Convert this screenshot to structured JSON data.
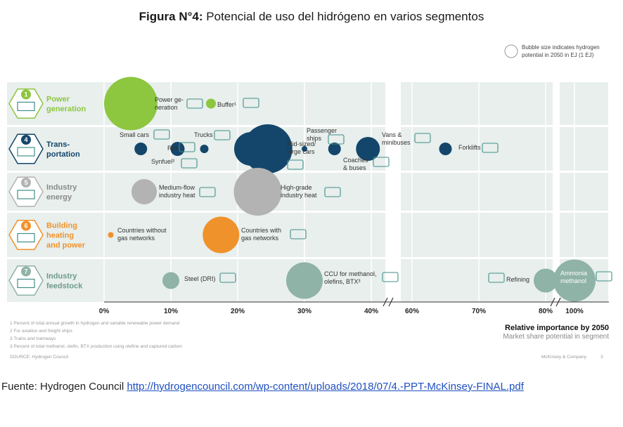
{
  "header": {
    "title_bold": "Figura N°4:",
    "title_rest": "Potencial de uso del hidrógeno en varios segmentos"
  },
  "legend": {
    "line1": "Bubble size indicates hydrogen",
    "line2": "potential in 2050 in EJ (1 EJ)"
  },
  "colors": {
    "power": "#8dc63f",
    "transport": "#14466b",
    "energy": "#b3b3b3",
    "building": "#f0922b",
    "feedstock": "#8fb3a6",
    "band": "#e8efec",
    "icon": "#3f8f8a"
  },
  "segments": [
    {
      "num": "1",
      "line1": "Power",
      "line2": "generation",
      "line3": "",
      "label_color": "#8dc63f",
      "color": "#8dc63f"
    },
    {
      "num": "4",
      "line1": "Trans-",
      "line2": "portation",
      "line3": "",
      "label_color": "#14466b",
      "color": "#14466b"
    },
    {
      "num": "5",
      "line1": "Industry",
      "line2": "energy",
      "line3": "",
      "label_color": "#8a8a8a",
      "color": "#b3b3b3"
    },
    {
      "num": "6",
      "line1": "Building",
      "line2": "heating",
      "line3": "and power",
      "label_color": "#f0922b",
      "color": "#f0922b"
    },
    {
      "num": "7",
      "line1": "Industry",
      "line2": "feedstock",
      "line3": "",
      "label_color": "#6f9a8c",
      "color": "#8fb3a6"
    }
  ],
  "chart_data": {
    "type": "scatter",
    "xlabel": "Relative importance by 2050",
    "xlabel_sub": "Market share potential in segment",
    "x_ticks": [
      "0%",
      "10%",
      "20%",
      "30%",
      "40%",
      "60%",
      "70%",
      "80%",
      "100%"
    ],
    "x_tick_values": [
      0,
      10,
      20,
      30,
      40,
      60,
      70,
      80,
      100
    ],
    "bubbles": [
      {
        "segment": 0,
        "label": [
          "Power ge-",
          "neration"
        ],
        "x": 4,
        "r": 38
      },
      {
        "segment": 0,
        "label": [
          "Buffer¹"
        ],
        "x": 16,
        "r": 7
      },
      {
        "segment": 1,
        "label": [
          "Small cars"
        ],
        "x": 11,
        "r": 10
      },
      {
        "segment": 1,
        "label": [
          "Rail²"
        ],
        "x": 15,
        "r": 6
      },
      {
        "segment": 1,
        "label": [
          "Synfuel³"
        ],
        "x": 5.5,
        "r": 9
      },
      {
        "segment": 1,
        "label": [
          "Trucks"
        ],
        "x": 22,
        "r": 24
      },
      {
        "segment": 1,
        "label": [
          "Mid-sized/",
          "large cars"
        ],
        "x": 24.5,
        "r": 35
      },
      {
        "segment": 1,
        "label": [
          "Passenger",
          "ships"
        ],
        "x": 30,
        "r": 4
      },
      {
        "segment": 1,
        "label": [
          "Coaches",
          "& buses"
        ],
        "x": 34.5,
        "r": 9
      },
      {
        "segment": 1,
        "label": [
          "Vans &",
          "minibuses"
        ],
        "x": 39.5,
        "r": 17
      },
      {
        "segment": 1,
        "label": [
          "Forklifts"
        ],
        "x": 65,
        "r": 9
      },
      {
        "segment": 2,
        "label": [
          "Medium-flow",
          "industry heat"
        ],
        "x": 6,
        "r": 18
      },
      {
        "segment": 2,
        "label": [
          "High-grade",
          "industry heat"
        ],
        "x": 23,
        "r": 34
      },
      {
        "segment": 3,
        "label": [
          "Countries without",
          "gas networks"
        ],
        "x": 1,
        "r": 4
      },
      {
        "segment": 3,
        "label": [
          "Countries with",
          "gas networks"
        ],
        "x": 17.5,
        "r": 26
      },
      {
        "segment": 4,
        "label": [
          "Steel (DRI)"
        ],
        "x": 10,
        "r": 12
      },
      {
        "segment": 4,
        "label": [
          "CCU for methanol,",
          "olefins, BTX³"
        ],
        "x": 30,
        "r": 26
      },
      {
        "segment": 4,
        "label": [
          "Refining"
        ],
        "x": 80,
        "r": 17
      },
      {
        "segment": 4,
        "label": [
          "Ammonia",
          "methanol"
        ],
        "x": 100,
        "r": 30
      }
    ]
  },
  "footnotes": [
    "1 Percent of total annual growth in hydrogen and variable renewable power demand",
    "2 For aviation and freight ships",
    "3 Trains and tramways",
    "3 Percent of total methanol, olefin, BTX production using olefine and captured carbon"
  ],
  "source_small": "SOURCE: Hydrogen Council",
  "brand": "McKinsey & Company",
  "page_number": "3",
  "footer": {
    "source_label": "Fuente: Hydrogen Council",
    "link_text": "http://hydrogencouncil.com/wp-content/uploads/2018/07/4.-PPT-McKinsey-FINAL.pdf"
  }
}
